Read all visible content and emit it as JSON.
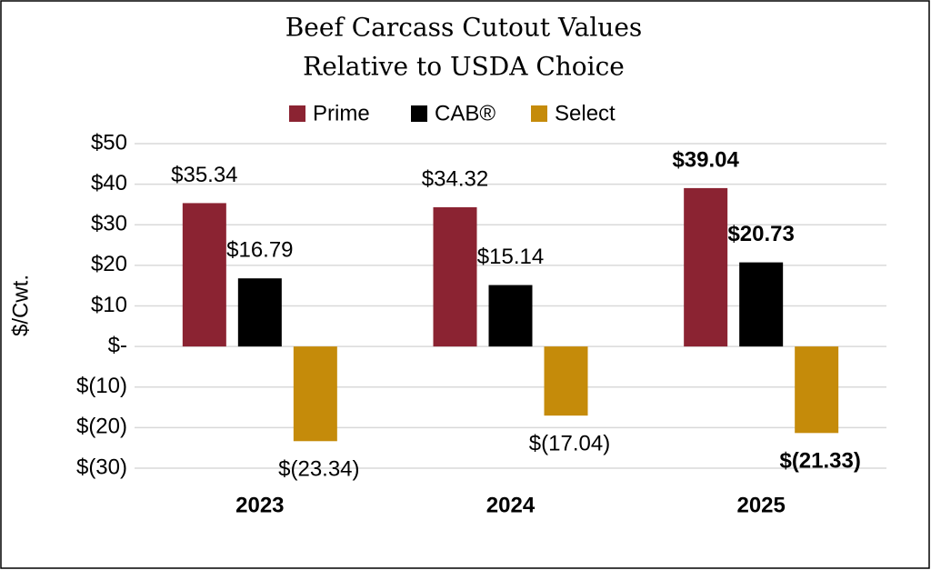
{
  "chart_data": {
    "type": "bar",
    "title": [
      "Beef Carcass Cutout Values",
      "Relative to USDA Choice"
    ],
    "y_label": "$/Cwt.",
    "categories": [
      "2023",
      "2024",
      "2025"
    ],
    "emphasis": "2025",
    "series": [
      {
        "name": "Prime",
        "color": "#8b2332",
        "values": [
          35.34,
          34.32,
          39.04
        ],
        "value_labels": [
          "$35.34",
          "$34.32",
          "$39.04"
        ]
      },
      {
        "name": "CAB®",
        "color": "#000000",
        "values": [
          16.79,
          15.14,
          20.73
        ],
        "value_labels": [
          "$16.79",
          "$15.14",
          "$20.73"
        ]
      },
      {
        "name": "Select",
        "color": "#c58b0a",
        "values": [
          -23.34,
          -17.04,
          -21.33
        ],
        "value_labels": [
          "$(23.34)",
          "$(17.04)",
          "$(21.33)"
        ]
      }
    ],
    "ylim": [
      -30,
      50
    ],
    "yticks": [
      {
        "value": -30,
        "label": "$(30)"
      },
      {
        "value": -20,
        "label": "$(20)"
      },
      {
        "value": -10,
        "label": "$(10)"
      },
      {
        "value": 0,
        "label": "$-"
      },
      {
        "value": 10,
        "label": "$10"
      },
      {
        "value": 20,
        "label": "$20"
      },
      {
        "value": 30,
        "label": "$30"
      },
      {
        "value": 40,
        "label": "$40"
      },
      {
        "value": 50,
        "label": "$50"
      }
    ],
    "grid": true,
    "legend": "top"
  }
}
